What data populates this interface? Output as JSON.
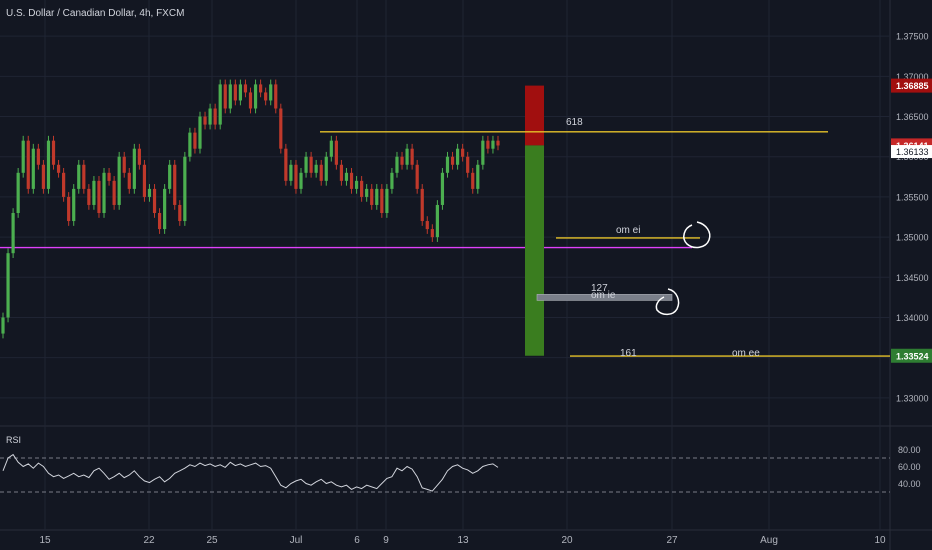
{
  "header": {
    "title": "U.S. Dollar / Canadian Dollar, 4h, FXCM"
  },
  "colors": {
    "background": "#131722",
    "grid": "#1f2433",
    "axis_text": "#b2b5be",
    "candle_up": "#4caf50",
    "candle_down": "#c0392b",
    "fib_line": "#e6c229",
    "support_line": "#e040fb",
    "stop_zone": "#a10f0f",
    "target_zone": "#3a7d1f",
    "price_badge_top": "#a10f0f",
    "price_badge_current": "#c62828",
    "price_badge_target": "#2e7d32",
    "rsi_line": "#d1d4dc"
  },
  "price_axis": {
    "ticks": [
      "1.37500",
      "1.37000",
      "1.36500",
      "1.36000",
      "1.35500",
      "1.35000",
      "1.34500",
      "1.34000",
      "1.33500",
      "1.33000"
    ],
    "badges": [
      {
        "label": "1.36885",
        "value": 1.36885,
        "kind": "top"
      },
      {
        "label": "1.36141",
        "value": 1.36141,
        "kind": "current"
      },
      {
        "label": "1.36133",
        "value": 1.36133,
        "kind": "plain"
      },
      {
        "label": "1.33524",
        "value": 1.33524,
        "kind": "target"
      }
    ]
  },
  "time_axis": {
    "ticks": [
      "15",
      "22",
      "25",
      "Jul",
      "6",
      "9",
      "13",
      "20",
      "27",
      "Aug",
      "10"
    ]
  },
  "annotations": {
    "fib_618": "618",
    "fib_127": "127",
    "fib_161": "161",
    "note_ei": "om ei",
    "note_ie": "om ie",
    "note_ee": "om ee"
  },
  "rsi": {
    "label": "RSI",
    "ticks": [
      "80.00",
      "60.00",
      "40.00"
    ],
    "upper_band": 70,
    "lower_band": 30
  },
  "chart_data": {
    "type": "candlestick",
    "title": "U.S. Dollar / Canadian Dollar, 4h, FXCM",
    "xlabel": "",
    "ylabel": "",
    "ylim": [
      1.3265,
      1.3795
    ],
    "grid": true,
    "series": [
      {
        "name": "",
        "type": "candlestick",
        "close_values": [
          1.34,
          1.348,
          1.353,
          1.358,
          1.362,
          1.356,
          1.361,
          1.359,
          1.356,
          1.362,
          1.359,
          1.358,
          1.355,
          1.352,
          1.356,
          1.359,
          1.356,
          1.354,
          1.357,
          1.353,
          1.358,
          1.357,
          1.354,
          1.36,
          1.358,
          1.356,
          1.361,
          1.359,
          1.355,
          1.356,
          1.353,
          1.351,
          1.356,
          1.359,
          1.354,
          1.352,
          1.36,
          1.363,
          1.361,
          1.365,
          1.364,
          1.366,
          1.364,
          1.369,
          1.366,
          1.369,
          1.367,
          1.369,
          1.368,
          1.366,
          1.369,
          1.368,
          1.367,
          1.369,
          1.366,
          1.361,
          1.357,
          1.359,
          1.356,
          1.358,
          1.36,
          1.358,
          1.359,
          1.357,
          1.36,
          1.362,
          1.359,
          1.357,
          1.358,
          1.356,
          1.357,
          1.355,
          1.356,
          1.354,
          1.356,
          1.353,
          1.356,
          1.358,
          1.36,
          1.359,
          1.361,
          1.359,
          1.356,
          1.352,
          1.351,
          1.35,
          1.354,
          1.358,
          1.36,
          1.359,
          1.361,
          1.36,
          1.358,
          1.356,
          1.359,
          1.362,
          1.361,
          1.362,
          1.3614
        ]
      }
    ],
    "horizontal_levels": [
      {
        "name": "618",
        "value": 1.3631
      },
      {
        "name": "om ei",
        "value": 1.3499
      },
      {
        "name": "127",
        "value": 1.3425
      },
      {
        "name": "161",
        "value": 1.3352
      },
      {
        "name": "support",
        "value": 1.3487
      }
    ],
    "position": {
      "stop": 1.36885,
      "entry": 1.36141,
      "target": 1.33524
    },
    "rsi_values": [
      55,
      70,
      74,
      65,
      60,
      63,
      58,
      64,
      60,
      52,
      48,
      50,
      46,
      49,
      52,
      48,
      50,
      47,
      55,
      58,
      52,
      45,
      48,
      52,
      47,
      50,
      55,
      48,
      43,
      41,
      45,
      48,
      42,
      46,
      52,
      55,
      58,
      62,
      60,
      64,
      61,
      63,
      60,
      62,
      59,
      65,
      61,
      63,
      60,
      62,
      64,
      60,
      61,
      58,
      48,
      38,
      35,
      40,
      43,
      45,
      40,
      38,
      42,
      45,
      40,
      42,
      38,
      36,
      38,
      33,
      36,
      34,
      38,
      36,
      34,
      40,
      46,
      48,
      58,
      55,
      60,
      57,
      48,
      35,
      33,
      31,
      38,
      45,
      55,
      60,
      62,
      58,
      56,
      52,
      55,
      60,
      62,
      63,
      59
    ]
  }
}
